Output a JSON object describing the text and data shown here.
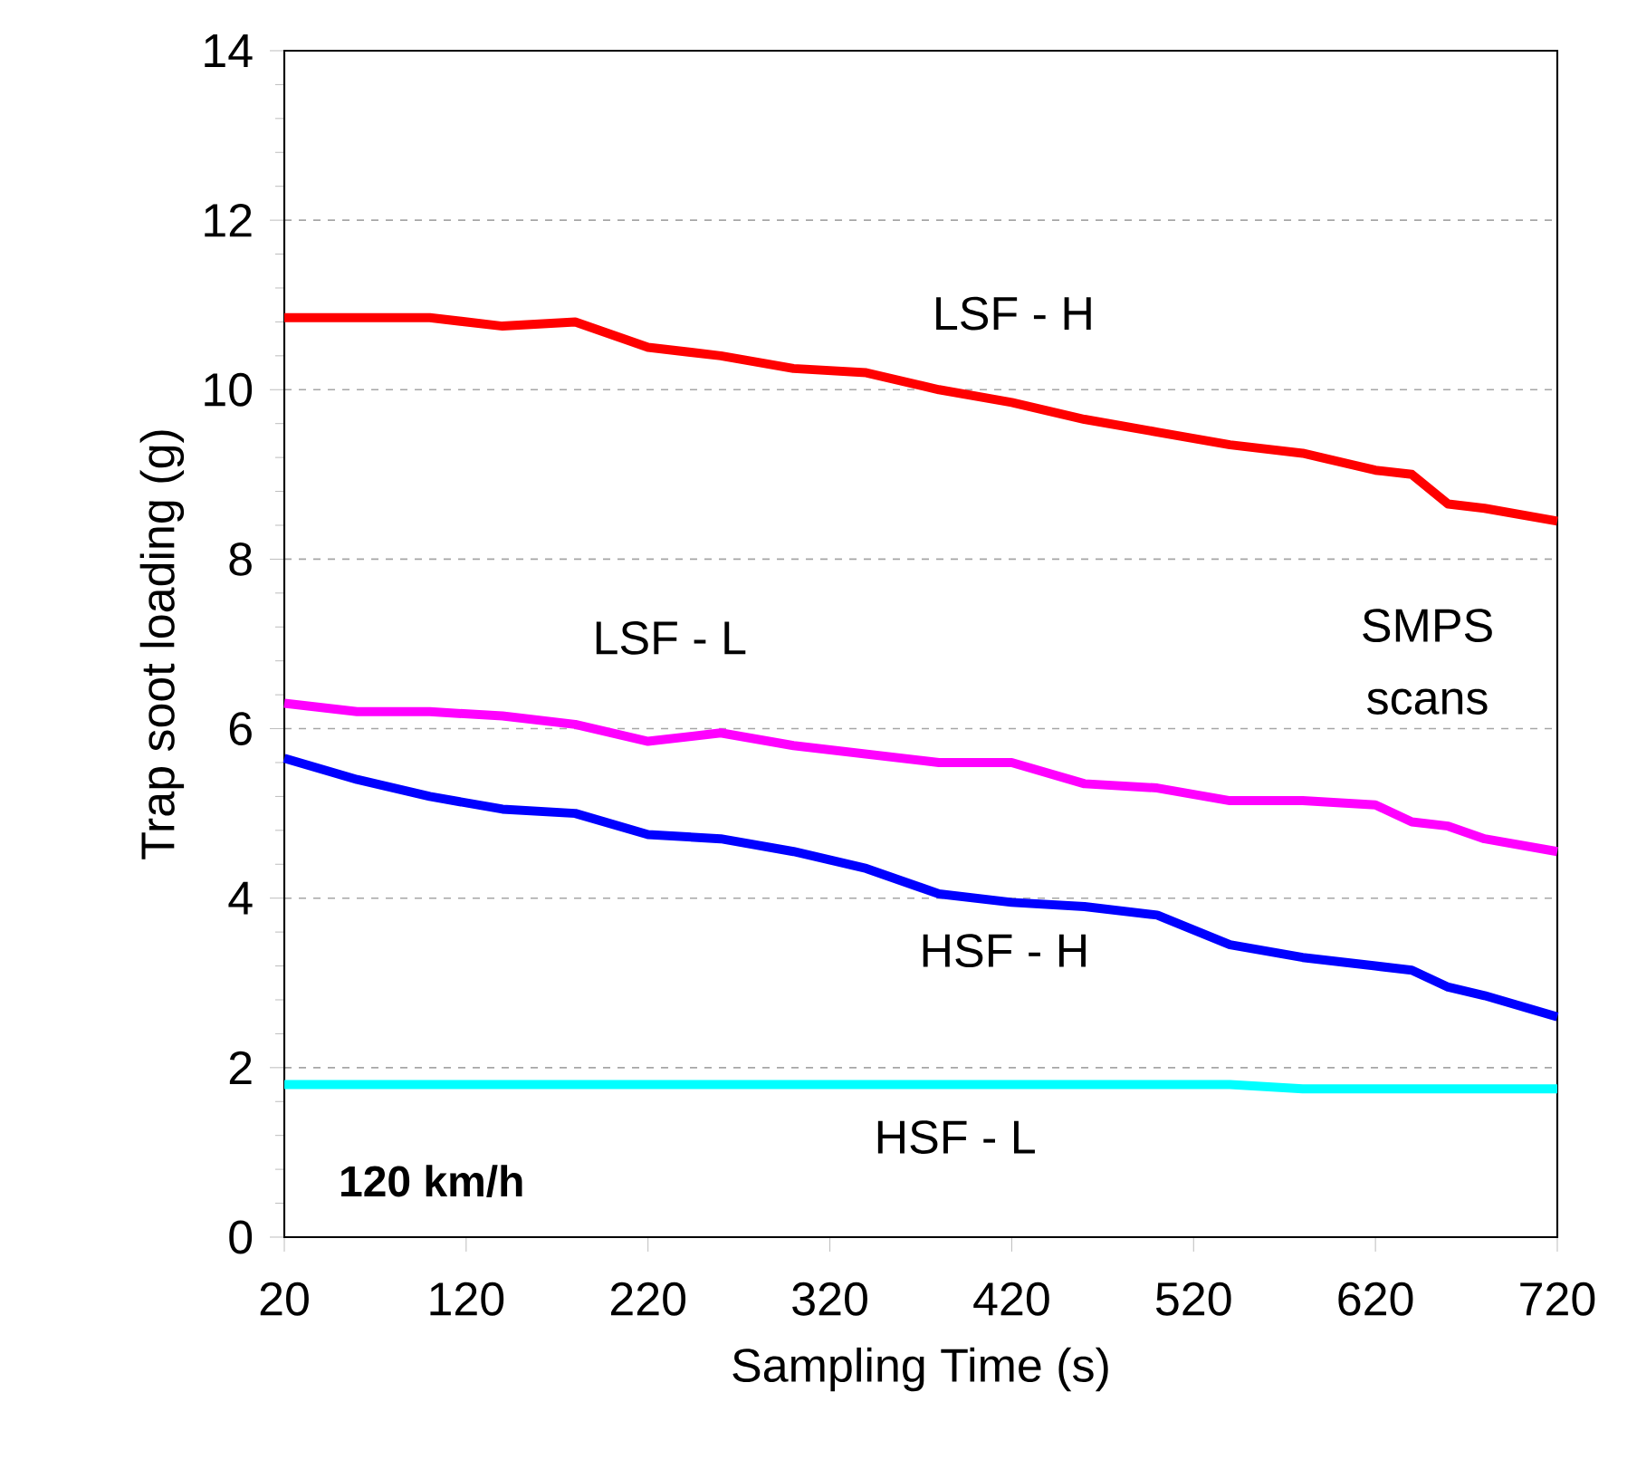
{
  "chart_data": {
    "type": "line",
    "xlabel": "Sampling Time (s)",
    "ylabel": "Trap soot loading (g)",
    "x": [
      20,
      60,
      100,
      140,
      180,
      220,
      260,
      300,
      340,
      380,
      420,
      460,
      500,
      540,
      580,
      620,
      640,
      660,
      680,
      720
    ],
    "series": [
      {
        "name": "LSF - H",
        "color": "#ff0000",
        "values": [
          10.85,
          10.85,
          10.85,
          10.75,
          10.8,
          10.5,
          10.4,
          10.25,
          10.2,
          10.0,
          9.85,
          9.65,
          9.5,
          9.35,
          9.25,
          9.05,
          9.0,
          8.65,
          8.6,
          8.45
        ]
      },
      {
        "name": "LSF - L",
        "color": "#ff00ff",
        "values": [
          6.3,
          6.2,
          6.2,
          6.15,
          6.05,
          5.85,
          5.95,
          5.8,
          5.7,
          5.6,
          5.6,
          5.35,
          5.3,
          5.15,
          5.15,
          5.1,
          4.9,
          4.85,
          4.7,
          4.55
        ]
      },
      {
        "name": "HSF - H",
        "color": "#0000ff",
        "values": [
          5.65,
          5.4,
          5.2,
          5.05,
          5.0,
          4.75,
          4.7,
          4.55,
          4.35,
          4.05,
          3.95,
          3.9,
          3.8,
          3.45,
          3.3,
          3.2,
          3.15,
          2.95,
          2.85,
          2.6
        ]
      },
      {
        "name": "HSF - L",
        "color": "#00ffff",
        "values": [
          1.8,
          1.8,
          1.8,
          1.8,
          1.8,
          1.8,
          1.8,
          1.8,
          1.8,
          1.8,
          1.8,
          1.8,
          1.8,
          1.8,
          1.75,
          1.75,
          1.75,
          1.75,
          1.75,
          1.75
        ]
      }
    ],
    "annotations": [
      "SMPS scans",
      "120 km/h"
    ],
    "xlim": [
      20,
      720
    ],
    "xticks": [
      20,
      120,
      220,
      320,
      420,
      520,
      620,
      720
    ],
    "ylim": [
      0,
      14
    ],
    "yticks": [
      0,
      2,
      4,
      6,
      8,
      10,
      12,
      14
    ],
    "grid": "y",
    "marker": "none",
    "line_style": "solid"
  }
}
